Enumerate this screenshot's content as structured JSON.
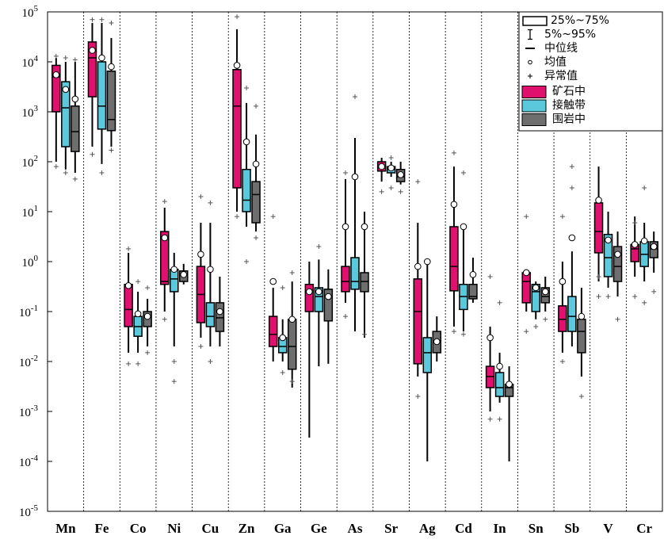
{
  "chart_data": {
    "type": "box",
    "log_scale": true,
    "categories": [
      "Mn",
      "Fe",
      "Co",
      "Ni",
      "Cu",
      "Zn",
      "Ga",
      "Ge",
      "As",
      "Sr",
      "Ag",
      "Cd",
      "In",
      "Sn",
      "Sb",
      "V",
      "Cr"
    ],
    "ylim": [
      1e-05,
      100000
    ],
    "yticks": [
      {
        "value": 1e-05,
        "label": "10",
        "exponent": "-5"
      },
      {
        "value": 0.0001,
        "label": "10",
        "exponent": "-4"
      },
      {
        "value": 0.001,
        "label": "10",
        "exponent": "-3"
      },
      {
        "value": 0.01,
        "label": "10",
        "exponent": "-2"
      },
      {
        "value": 0.1,
        "label": "10",
        "exponent": "-1"
      },
      {
        "value": 1,
        "label": "10",
        "exponent": "0"
      },
      {
        "value": 10,
        "label": "10",
        "exponent": "1"
      },
      {
        "value": 100,
        "label": "10",
        "exponent": "2"
      },
      {
        "value": 1000,
        "label": "10",
        "exponent": "3"
      },
      {
        "value": 10000,
        "label": "10",
        "exponent": "4"
      },
      {
        "value": 100000,
        "label": "10",
        "exponent": "5"
      }
    ],
    "legend_items": [
      "25%~75%",
      "5%~95%",
      "中位线",
      "均值",
      "异常值"
    ],
    "legend_position": "upper right",
    "series": [
      {
        "name": "矿石中",
        "color": "#e0106f",
        "boxes": [
          {
            "p5": 100,
            "q1": 1000,
            "median": 5000,
            "q3": 8500,
            "p95": 12000,
            "mean": 5500,
            "outliers": [
              80,
              13000
            ]
          },
          {
            "p5": 200,
            "q1": 2000,
            "median": 12000,
            "q3": 25000,
            "p95": 60000,
            "mean": 17000,
            "outliers": [
              140,
              70000
            ]
          },
          {
            "p5": 0.015,
            "q1": 0.05,
            "median": 0.11,
            "q3": 0.35,
            "p95": 1.5,
            "mean": 0.33,
            "outliers": [
              0.009,
              1.8
            ]
          },
          {
            "p5": 0.1,
            "q1": 0.35,
            "median": 0.4,
            "q3": 4,
            "p95": 12,
            "mean": 3,
            "outliers": [
              0.07,
              16
            ]
          },
          {
            "p5": 0.03,
            "q1": 0.06,
            "median": 0.22,
            "q3": 0.8,
            "p95": 6,
            "mean": 1.4,
            "outliers": [
              0.02,
              20
            ]
          },
          {
            "p5": 10,
            "q1": 30,
            "median": 1300,
            "q3": 7000,
            "p95": 45000,
            "mean": 8500,
            "outliers": [
              8,
              80000
            ]
          },
          {
            "p5": 0.01,
            "q1": 0.02,
            "median": 0.035,
            "q3": 0.08,
            "p95": 0.3,
            "mean": 0.4,
            "outliers": [
              8
            ]
          },
          {
            "p5": 0.0003,
            "q1": 0.1,
            "median": 0.25,
            "q3": 0.35,
            "p95": 1,
            "mean": 0.25,
            "outliers": []
          },
          {
            "p5": 0.15,
            "q1": 0.25,
            "median": 0.4,
            "q3": 0.8,
            "p95": 45,
            "mean": 5,
            "outliers": [
              0.08,
              60
            ]
          },
          {
            "p5": 40,
            "q1": 65,
            "median": 80,
            "q3": 100,
            "p95": 120,
            "mean": 80,
            "outliers": [
              25
            ]
          },
          {
            "p5": 0.005,
            "q1": 0.009,
            "median": 0.1,
            "q3": 0.45,
            "p95": 6,
            "mean": 0.8,
            "outliers": [
              0.002,
              40
            ]
          },
          {
            "p5": 0.05,
            "q1": 0.26,
            "median": 0.8,
            "q3": 5,
            "p95": 80,
            "mean": 14,
            "outliers": [
              0.04,
              150
            ]
          },
          {
            "p5": 0.001,
            "q1": 0.003,
            "median": 0.005,
            "q3": 0.008,
            "p95": 0.05,
            "mean": 0.03,
            "outliers": [
              0.0007,
              0.5
            ]
          },
          {
            "p5": 0.1,
            "q1": 0.15,
            "median": 0.4,
            "q3": 0.6,
            "p95": 0.7,
            "mean": 0.6,
            "outliers": [
              0.04,
              8
            ]
          },
          {
            "p5": 0.015,
            "q1": 0.04,
            "median": 0.07,
            "q3": 0.13,
            "p95": 1,
            "mean": 0.4,
            "outliers": [
              0.01,
              8
            ]
          },
          {
            "p5": 0.4,
            "q1": 1.5,
            "median": 4,
            "q3": 15,
            "p95": 80,
            "mean": 17,
            "outliers": [
              0.2,
              0.5
            ]
          },
          {
            "p5": 0.5,
            "q1": 1,
            "median": 1.8,
            "q3": 2.2,
            "p95": 8,
            "mean": 2.2,
            "outliers": [
              0.2,
              6
            ]
          }
        ]
      },
      {
        "name": "接触带",
        "color": "#5bc8dc",
        "boxes": [
          {
            "p5": 70,
            "q1": 200,
            "median": 1200,
            "q3": 4000,
            "p95": 10000,
            "mean": 2800,
            "outliers": [
              60,
              12000
            ]
          },
          {
            "p5": 90,
            "q1": 450,
            "median": 1300,
            "q3": 10000,
            "p95": 60000,
            "mean": 12000,
            "outliers": [
              60,
              70000
            ]
          },
          {
            "p5": 0.015,
            "q1": 0.032,
            "median": 0.05,
            "q3": 0.08,
            "p95": 0.25,
            "mean": 0.09,
            "outliers": [
              0.009,
              0.4
            ]
          },
          {
            "p5": 0.02,
            "q1": 0.25,
            "median": 0.45,
            "q3": 0.7,
            "p95": 1.5,
            "mean": 0.7,
            "outliers": [
              0.004,
              0.01
            ]
          },
          {
            "p5": 0.02,
            "q1": 0.05,
            "median": 0.08,
            "q3": 0.15,
            "p95": 6,
            "mean": 0.7,
            "outliers": [
              0.01,
              15
            ]
          },
          {
            "p5": 5,
            "q1": 10,
            "median": 17,
            "q3": 70,
            "p95": 1500,
            "mean": 250,
            "outliers": [
              1,
              3000
            ]
          },
          {
            "p5": 0.01,
            "q1": 0.015,
            "median": 0.02,
            "q3": 0.03,
            "p95": 0.07,
            "mean": 0.03,
            "outliers": [
              0.006,
              0.3
            ]
          },
          {
            "p5": 0.008,
            "q1": 0.1,
            "median": 0.2,
            "q3": 0.3,
            "p95": 1.1,
            "mean": 0.25,
            "outliers": [
              2
            ]
          },
          {
            "p5": 0.04,
            "q1": 0.28,
            "median": 0.4,
            "q3": 1.2,
            "p95": 300,
            "mean": 50,
            "outliers": [
              2000
            ]
          },
          {
            "p5": 50,
            "q1": 60,
            "median": 70,
            "q3": 80,
            "p95": 100,
            "mean": 75,
            "outliers": [
              30,
              120
            ]
          },
          {
            "p5": 0.0001,
            "q1": 0.006,
            "median": 0.015,
            "q3": 0.03,
            "p95": 0.9,
            "mean": 1,
            "outliers": []
          },
          {
            "p5": 0.04,
            "q1": 0.11,
            "median": 0.2,
            "q3": 0.35,
            "p95": 5,
            "mean": 5,
            "outliers": [
              0.035,
              60
            ]
          },
          {
            "p5": 0.0015,
            "q1": 0.002,
            "median": 0.003,
            "q3": 0.006,
            "p95": 0.015,
            "mean": 0.008,
            "outliers": [
              0.0007,
              0.15
            ]
          },
          {
            "p5": 0.07,
            "q1": 0.1,
            "median": 0.25,
            "q3": 0.35,
            "p95": 0.4,
            "mean": 0.3,
            "outliers": [
              0.05
            ]
          },
          {
            "p5": 0.02,
            "q1": 0.04,
            "median": 0.08,
            "q3": 0.2,
            "p95": 1.6,
            "mean": 3,
            "outliers": [
              80,
              30
            ]
          },
          {
            "p5": 0.3,
            "q1": 0.5,
            "median": 1.2,
            "q3": 3.5,
            "p95": 10,
            "mean": 2.7,
            "outliers": [
              0.2
            ]
          },
          {
            "p5": 0.4,
            "q1": 0.8,
            "median": 1.4,
            "q3": 2.5,
            "p95": 6,
            "mean": 2.6,
            "outliers": [
              0.15,
              30
            ]
          }
        ]
      },
      {
        "name": "围岩中",
        "color": "#6e6e6e",
        "boxes": [
          {
            "p5": 60,
            "q1": 160,
            "median": 400,
            "q3": 1300,
            "p95": 10000,
            "mean": 1800,
            "outliers": [
              45,
              11000
            ]
          },
          {
            "p5": 200,
            "q1": 420,
            "median": 700,
            "q3": 6500,
            "p95": 30000,
            "mean": 8000,
            "outliers": [
              170,
              60000
            ]
          },
          {
            "p5": 0.02,
            "q1": 0.05,
            "median": 0.08,
            "q3": 0.1,
            "p95": 0.18,
            "mean": 0.08,
            "outliers": [
              0.015,
              0.3
            ]
          },
          {
            "p5": 0.35,
            "q1": 0.4,
            "median": 0.55,
            "q3": 0.65,
            "p95": 0.9,
            "mean": 0.55,
            "outliers": []
          },
          {
            "p5": 0.02,
            "q1": 0.04,
            "median": 0.075,
            "q3": 0.15,
            "p95": 0.5,
            "mean": 0.1,
            "outliers": []
          },
          {
            "p5": 4,
            "q1": 6,
            "median": 22,
            "q3": 40,
            "p95": 350,
            "mean": 90,
            "outliers": [
              3,
              1300
            ]
          },
          {
            "p5": 0.003,
            "q1": 0.007,
            "median": 0.02,
            "q3": 0.07,
            "p95": 0.4,
            "mean": 0.07,
            "outliers": [
              0.004,
              0.6
            ]
          },
          {
            "p5": 0.009,
            "q1": 0.065,
            "median": 0.2,
            "q3": 0.28,
            "p95": 0.7,
            "mean": 0.2,
            "outliers": []
          },
          {
            "p5": 0.03,
            "q1": 0.25,
            "median": 0.4,
            "q3": 0.6,
            "p95": 10,
            "mean": 5,
            "outliers": [
              0.035
            ]
          },
          {
            "p5": 35,
            "q1": 40,
            "median": 50,
            "q3": 70,
            "p95": 100,
            "mean": 55,
            "outliers": [
              25
            ]
          },
          {
            "p5": 0.01,
            "q1": 0.015,
            "median": 0.025,
            "q3": 0.04,
            "p95": 0.08,
            "mean": 0.025,
            "outliers": []
          },
          {
            "p5": 0.15,
            "q1": 0.18,
            "median": 0.2,
            "q3": 0.35,
            "p95": 1.2,
            "mean": 0.55,
            "outliers": []
          },
          {
            "p5": 0.0001,
            "q1": 0.002,
            "median": 0.003,
            "q3": 0.0035,
            "p95": 0.008,
            "mean": 0.0035,
            "outliers": []
          },
          {
            "p5": 0.1,
            "q1": 0.15,
            "median": 0.2,
            "q3": 0.3,
            "p95": 0.5,
            "mean": 0.25,
            "outliers": [
              0.07
            ]
          },
          {
            "p5": 0.005,
            "q1": 0.015,
            "median": 0.04,
            "q3": 0.07,
            "p95": 0.3,
            "mean": 0.08,
            "outliers": [
              0.002
            ]
          },
          {
            "p5": 0.2,
            "q1": 0.4,
            "median": 0.8,
            "q3": 2,
            "p95": 4,
            "mean": 1.4,
            "outliers": [
              0.07
            ]
          },
          {
            "p5": 0.6,
            "q1": 1.2,
            "median": 1.8,
            "q3": 2.5,
            "p95": 4,
            "mean": 2,
            "outliers": [
              0.25
            ]
          }
        ]
      }
    ]
  }
}
